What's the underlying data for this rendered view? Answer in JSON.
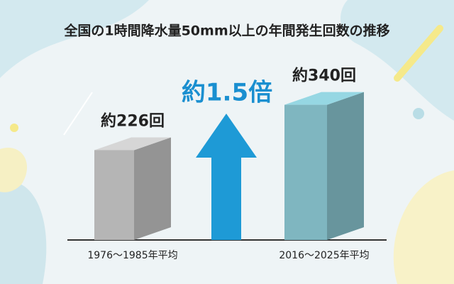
{
  "chart_data": {
    "type": "bar3d",
    "title": "全国の1時間降水量50mm以上の年間発生回数の推移",
    "categories": [
      "1976〜1985年平均",
      "2016〜2025年平均"
    ],
    "values": [
      226,
      340
    ],
    "value_labels": [
      "約226回",
      "約340回"
    ],
    "colors": [
      "#b5b5b5",
      "#7fb6c0"
    ],
    "annotation": "約1.5倍"
  }
}
